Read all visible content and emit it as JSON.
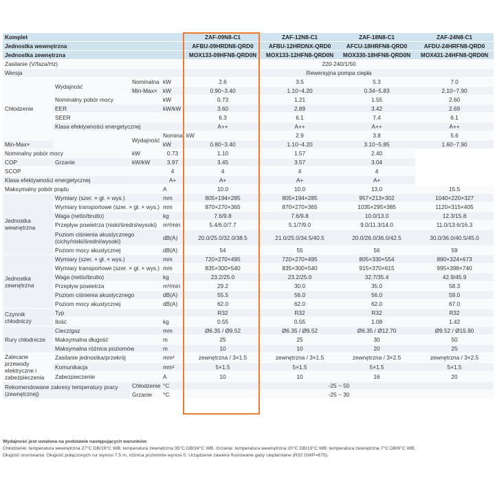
{
  "header": {
    "label_set": "Komplet",
    "label_indoor": "Jednostka wewnętrzna",
    "label_outdoor": "Jednostka zewnętrzna",
    "sets": [
      "ZAF-09N8-C1",
      "ZAF-12N8-C1",
      "ZAF-18N8-C1",
      "ZAF-24N8-C1"
    ],
    "indoor": [
      "AFBU-09HRDN8-QRD0",
      "AFBU-12HRDNX-QRD0",
      "AFCU-18HRFN8-QRD0",
      "AFDU-24HRFN8-QRD0"
    ],
    "outdoor": [
      "MOX133-09HFN8-QRD0N",
      "MOX133-12HFN8-QRD0N",
      "MOX330-18HFN8-QRD0N",
      "MOX431-24HFN8-QRD0N"
    ]
  },
  "rows": {
    "power_supply": {
      "label": "Zasilanie (V/faza/Hz)",
      "value": "220-240/1/50"
    },
    "version": {
      "label": "Wersja",
      "value": "Rewersyjna pompa ciepła"
    },
    "cooling": {
      "group": "Chłodzenie",
      "capacity_label": "Wydajność",
      "nominal": {
        "sub": "Nominalna",
        "unit": "kW",
        "v": [
          "2.6",
          "3.5",
          "5.3",
          "7.0"
        ]
      },
      "minmax": {
        "sub": "Min-Max×",
        "unit": "kW",
        "v": [
          "0.90~3.40",
          "1.10~4.20",
          "0.34~5.83",
          "2.10~7.90"
        ]
      },
      "power": {
        "label": "Nominalny pobór mocy",
        "unit": "kW",
        "v": [
          "0.73",
          "1.21",
          "1.55",
          "2.60"
        ]
      },
      "eer": {
        "label": "EER",
        "unit": "kW/kW",
        "v": [
          "3.60",
          "2.89",
          "3.42",
          "2.69"
        ]
      },
      "seer": {
        "label": "SEER",
        "unit": "",
        "v": [
          "6.3",
          "6.1",
          "7.4",
          "6.1"
        ]
      },
      "klasa": {
        "label": "Klasa efektywności energetycznej",
        "unit": "",
        "v": [
          "A++",
          "A++",
          "A++",
          "A++"
        ]
      }
    },
    "heating": {
      "group": "Grzanie",
      "capacity_label": "Wydajność",
      "nominal": {
        "sub": "Nominalna",
        "unit": "kW",
        "v": [
          "2.9",
          "3.8",
          "5.6",
          "7.3"
        ]
      },
      "minmax": {
        "sub": "Min-Max×",
        "unit": "kW",
        "v": [
          "0.80~3.40",
          "1.10~4.20",
          "3.10~5.85",
          "1.60~7.90"
        ]
      },
      "power": {
        "label": "Nominalny pobór mocy",
        "unit": "kW",
        "v": [
          "0.73",
          "1.10",
          "1.57",
          "2.40"
        ]
      },
      "cop": {
        "label": "COP",
        "unit": "kW/kW",
        "v": [
          "3.97",
          "3.45",
          "3.57",
          "3.04"
        ]
      },
      "scop": {
        "label": "SCOP",
        "unit": "",
        "v": [
          "4",
          "4",
          "4",
          "4"
        ]
      },
      "klasa": {
        "label": "Klasa efektywności energetycznej",
        "unit": "",
        "v": [
          "A+",
          "A+",
          "A+",
          "A+"
        ]
      }
    },
    "max_power": {
      "label": "Maksymalny pobór prądu",
      "unit": "A",
      "v": [
        "10.0",
        "10.0",
        "13.0",
        "15.5"
      ]
    },
    "indoor_unit": {
      "group": "Jednostka wewnętrzna",
      "dims": {
        "label": "Wymiary (szer. × gł. × wys.)",
        "unit": "mm",
        "v": [
          "805×194×285",
          "805×194×285",
          "957×213×302",
          "1040×220×327"
        ]
      },
      "transport": {
        "label": "Wymiary transportowe (szer. × gł. × wys.)",
        "unit": "mm",
        "v": [
          "870×270×365",
          "870×270×365",
          "1035×295×385",
          "1120×315×405"
        ]
      },
      "weight": {
        "label": "Waga (netto/brutto)",
        "unit": "kg",
        "v": [
          "7.6/9.8",
          "7.6/9.8",
          "10.0/13.0",
          "12.3/15.8"
        ]
      },
      "airflow": {
        "label": "Przepływ powietrza (niski/średni/wysoki)",
        "unit": "m³/min",
        "v": [
          "5.4/6.0/7.7",
          "5.1/7/9.0",
          "9.0/11.3/14.0",
          "11.0/13.6/16.3"
        ]
      },
      "pressure": {
        "label": "Poziom ciśnienia akustycznego (cichy/niski/średni/wysoki)",
        "unit": "dB(A)",
        "v": [
          "20.0/25.0/32.0/38.5",
          "21.0/25.0/34.5/40.5",
          "20.0/26.0/36.0/42.5",
          "30.0/36.0/40.5/45.0"
        ]
      },
      "sound_power": {
        "label": "Poziom mocy akustycznej",
        "unit": "dB(A)",
        "v": [
          "54",
          "55",
          "56",
          "59"
        ]
      }
    },
    "outdoor_unit": {
      "group": "Jednostka zewnętrzna",
      "dims": {
        "label": "Wymiary (szer. × gł. × wys.)",
        "unit": "mm",
        "v": [
          "720×270×495",
          "720×270×495",
          "805×330×554",
          "890×324×673"
        ]
      },
      "transport": {
        "label": "Wymiary transportowe (szer. × gł. × wys.)",
        "unit": "mm",
        "v": [
          "835×300×540",
          "835×300×540",
          "915×370×615",
          "995×398×740"
        ]
      },
      "weight": {
        "label": "Waga (netto/brutto)",
        "unit": "kg",
        "v": [
          "23.2/25.0",
          "23.2/25.0",
          "32.7/35.4",
          "42.9/45.9"
        ]
      },
      "airflow": {
        "label": "Przepływ powietrza",
        "unit": "m³/min",
        "v": [
          "29.2",
          "30.0",
          "35.0",
          "58.3"
        ]
      },
      "pressure": {
        "label": "Poziom ciśnienia akustycznego",
        "unit": "dB(A)",
        "v": [
          "55.5",
          "56.0",
          "56.0",
          "59.0"
        ]
      },
      "sound_power": {
        "label": "Poziom mocy akustycznej",
        "unit": "dB(A)",
        "v": [
          "62.0",
          "62.0",
          "62.0",
          "67.0"
        ]
      }
    },
    "refrigerant": {
      "group": "Czynnik chłodniczy",
      "type": {
        "label": "Typ",
        "unit": "",
        "v": [
          "R32",
          "R32",
          "R32",
          "R32"
        ]
      },
      "amount": {
        "label": "Ilość",
        "unit": "kg",
        "v": [
          "0.55",
          "0.55",
          "1.08",
          "1.42"
        ]
      }
    },
    "pipes": {
      "group": "Rury chłodnicze",
      "liquid_gas": {
        "label": "Ciecz/gaz",
        "unit": "mm",
        "v": [
          "Ø6.35 / Ø9.52",
          "Ø6.35 / Ø9.52",
          "Ø6.35 / Ø12.70",
          "Ø9.52 / Ø15.90"
        ]
      },
      "max_length": {
        "label": "Maksymalna długość",
        "unit": "m",
        "v": [
          "25",
          "25",
          "30",
          "50"
        ]
      },
      "max_height": {
        "label": "Maksymalna różnica poziomów",
        "unit": "m",
        "v": [
          "10",
          "10",
          "20",
          "25"
        ]
      }
    },
    "electrical": {
      "group": "Zalecane przewody elektryczne i zabezpieczenia",
      "supply": {
        "label": "Zasilanie jednostka/przekrój",
        "unit": "mm²",
        "v": [
          "zewnętrzna / 3×1.5",
          "zewnętrzna / 3×1.5",
          "zewnętrzna / 3×2.5",
          "zewnętrzna / 3×2.5"
        ]
      },
      "comm": {
        "label": "Komunikacja",
        "unit": "mm²",
        "v": [
          "5×1.5",
          "5×1.5",
          "5×1.5",
          "5×1.5"
        ]
      },
      "fuse": {
        "label": "Zabezpieczenie",
        "unit": "A",
        "v": [
          "10",
          "10",
          "16",
          "20"
        ]
      }
    },
    "temp_range": {
      "group": "Rekomendowane zakresy temperatury pracy (zewnętrznej)",
      "cooling": {
        "label": "Chłodzenie",
        "unit": "°C",
        "value": "-25 ~ 50"
      },
      "heating": {
        "label": "Grzanie",
        "unit": "°C",
        "value": "-25 ~ 30"
      }
    }
  },
  "notes": {
    "title": "Wydajność jest ustalona na podstawie następujących warunków:",
    "line1": "Chłodzenie: temperatura wewnętrzna 27°C DB/19°C WB; temperatura zewnętrzna 35°C DB/24°C WB. Grzanie: temperatura wewnętrzna 20°C DB/15°C WB; temperatura zewnętrzna 7°C DB/6°C WB.",
    "line2": "Długość orurowania: Długość połączonych rur wynosi 7.5 m, różnica poziomów wynosi 0. Urządzenie zawiera fluorowane gazy cieplarniane (R32 GWP=675)."
  },
  "colors": {
    "header_bg": "#cfe3ef",
    "row_odd": "#eef2f6",
    "row_even": "#f9fafb",
    "highlight": "#ef7a2e"
  }
}
